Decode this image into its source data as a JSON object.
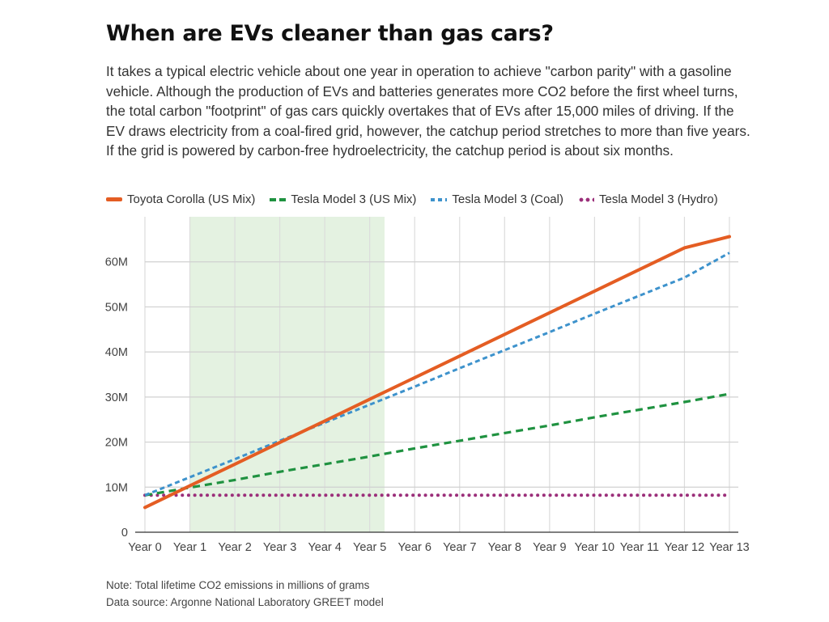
{
  "header": {
    "title": "When are EVs cleaner than gas cars?",
    "description": "It takes a typical electric vehicle about one year in operation to achieve \"carbon parity\" with a gasoline vehicle. Although the production of EVs and batteries generates more CO2 before the first wheel turns, the total carbon \"footprint\" of gas cars quickly overtakes that of EVs after 15,000 miles of driving. If the EV draws electricity from a coal-fired grid, however, the catchup period stretches to more than five years. If the grid is powered by carbon-free hydroelectricity, the catchup period is about six months."
  },
  "footer": {
    "note": "Note: Total lifetime CO2 emissions in millions of grams",
    "source": "Data source: Argonne National Laboratory GREET model"
  },
  "chart_data": {
    "type": "line",
    "title": "When are EVs cleaner than gas cars?",
    "xlabel": "",
    "ylabel": "",
    "categories": [
      "Year 0",
      "Year 1",
      "Year 2",
      "Year 3",
      "Year 4",
      "Year 5",
      "Year 6",
      "Year 7",
      "Year 8",
      "Year 9",
      "Year 10",
      "Year 11",
      "Year 12",
      "Year 13"
    ],
    "x": [
      0,
      1,
      2,
      3,
      4,
      5,
      6,
      7,
      8,
      9,
      10,
      11,
      12,
      13
    ],
    "ylim": [
      0,
      70
    ],
    "yticks": [
      0,
      10,
      20,
      30,
      40,
      50,
      60
    ],
    "ytick_labels": [
      "0",
      "10M",
      "20M",
      "30M",
      "40M",
      "50M",
      "60M"
    ],
    "grid": true,
    "legend_position": "top-left",
    "highlight_band": {
      "from": 1,
      "to": 5.33,
      "color": "#e4f2e1"
    },
    "series": [
      {
        "name": "Toyota Corolla (US Mix)",
        "color": "#e45d23",
        "style": "solid",
        "values": [
          5.5,
          10.3,
          15.1,
          19.9,
          24.7,
          29.5,
          34.3,
          39.1,
          43.9,
          48.7,
          53.5,
          58.3,
          63.1,
          65.6
        ]
      },
      {
        "name": "Tesla Model 3 (US Mix)",
        "color": "#1f9240",
        "style": "dashed",
        "values": [
          8.2,
          9.9,
          11.6,
          13.4,
          15.1,
          16.8,
          18.6,
          20.3,
          22.0,
          23.7,
          25.5,
          27.2,
          28.9,
          30.7
        ]
      },
      {
        "name": "Tesla Model 3 (Coal)",
        "color": "#3d92cc",
        "style": "dotted-dash",
        "values": [
          8.2,
          12.2,
          16.2,
          20.3,
          24.3,
          28.3,
          32.3,
          36.4,
          40.4,
          44.4,
          48.5,
          52.5,
          56.5,
          62.0
        ]
      },
      {
        "name": "Tesla Model 3 (Hydro)",
        "color": "#9b2f7a",
        "style": "dotted",
        "values": [
          8.2,
          8.2,
          8.2,
          8.2,
          8.2,
          8.2,
          8.2,
          8.2,
          8.2,
          8.2,
          8.2,
          8.2,
          8.2,
          8.2
        ]
      }
    ]
  }
}
